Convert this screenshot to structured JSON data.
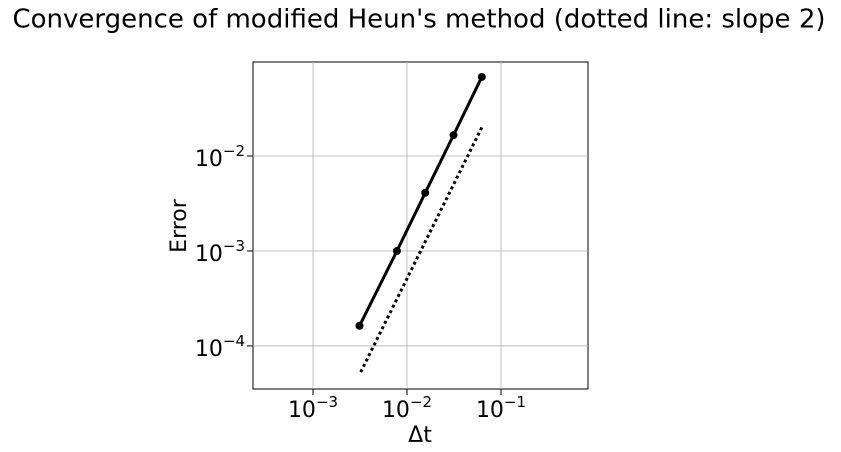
{
  "chart_data": {
    "type": "line",
    "title": "Convergence of modified Heun's method (dotted line: slope 2)",
    "xlabel": "Δt",
    "ylabel": "Error",
    "xscale": "log",
    "yscale": "log",
    "grid": true,
    "xlim": [
      0.00023,
      0.842
    ],
    "ylim": [
      3.52e-05,
      0.0977
    ],
    "xticks": [
      {
        "value": 0.001,
        "label": "10−3"
      },
      {
        "value": 0.01,
        "label": "10−2"
      },
      {
        "value": 0.1,
        "label": "10−1"
      }
    ],
    "yticks": [
      {
        "value": 0.0001,
        "label": "10−4"
      },
      {
        "value": 0.001,
        "label": "10−3"
      },
      {
        "value": 0.01,
        "label": "10−2"
      }
    ],
    "series": [
      {
        "style": "solid",
        "markers": true,
        "color": "#000000",
        "x": [
          0.0625,
          0.03125,
          0.015625,
          0.0078125,
          0.003125
        ],
        "values": [
          0.068,
          0.0166,
          0.0041,
          0.001,
          0.000163
        ]
      },
      {
        "style": "dotted",
        "markers": false,
        "color": "#000000",
        "x": [
          0.0625,
          0.003125
        ],
        "values": [
          0.02,
          5e-05
        ]
      }
    ]
  }
}
